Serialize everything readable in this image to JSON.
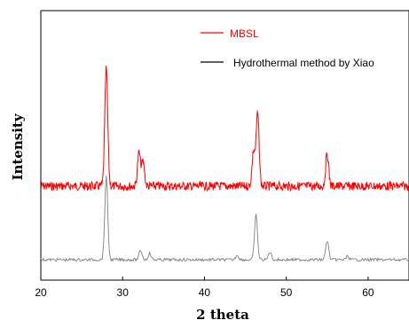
{
  "chart_data": {
    "type": "line",
    "xlabel": "2 theta",
    "ylabel": "Intensity",
    "xlim": [
      20,
      65
    ],
    "x_ticks": [
      20,
      30,
      40,
      50,
      60
    ],
    "y_ticks_shown": false,
    "grid": false,
    "legend_position": "top-right",
    "series": [
      {
        "name": "MBSL",
        "color": "#ff0000",
        "peaks": [
          {
            "x": 28.0,
            "height": 0.78
          },
          {
            "x": 32.0,
            "height": 0.22
          },
          {
            "x": 32.5,
            "height": 0.16
          },
          {
            "x": 46.0,
            "height": 0.23
          },
          {
            "x": 46.5,
            "height": 0.48
          },
          {
            "x": 55.0,
            "height": 0.22
          }
        ],
        "baseline": 0.25
      },
      {
        "name": "Hydrothermal method by Xiao",
        "color": "#808080",
        "peaks": [
          {
            "x": 28.0,
            "height": 0.52
          },
          {
            "x": 32.2,
            "height": 0.06
          },
          {
            "x": 33.3,
            "height": 0.04
          },
          {
            "x": 44.0,
            "height": 0.03
          },
          {
            "x": 46.3,
            "height": 0.28
          },
          {
            "x": 48.0,
            "height": 0.05
          },
          {
            "x": 55.0,
            "height": 0.12
          },
          {
            "x": 57.5,
            "height": 0.02
          }
        ],
        "baseline": 0.07
      }
    ]
  }
}
